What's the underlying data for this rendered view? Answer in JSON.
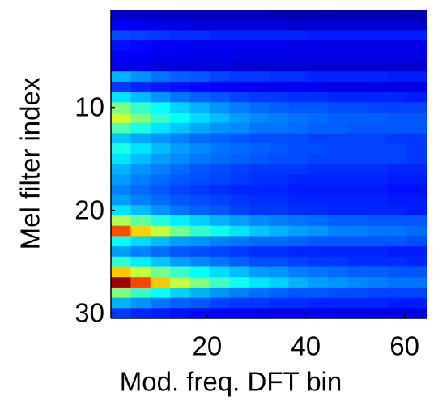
{
  "chart_data": {
    "type": "heatmap",
    "xlabel": "Mod. freq. DFT bin",
    "ylabel": "Mel filter index",
    "xbins": [
      0.5,
      4.5,
      8.5,
      12.5,
      16.5,
      20.5,
      24.5,
      28.5,
      32.5,
      36.5,
      40.5,
      44.5,
      48.5,
      52.5,
      56.5,
      60.5,
      64.5
    ],
    "y": [
      1,
      2,
      3,
      4,
      5,
      6,
      7,
      8,
      9,
      10,
      11,
      12,
      13,
      14,
      15,
      16,
      17,
      18,
      19,
      20,
      21,
      22,
      23,
      24,
      25,
      26,
      27,
      28,
      29,
      30
    ],
    "xlim": [
      0.5,
      64.5
    ],
    "xticks": [
      20,
      40,
      60
    ],
    "ylim": [
      0.5,
      30.5
    ],
    "yticks": [
      10,
      20,
      30
    ],
    "y_inverted": true,
    "colormap": "jet",
    "zlim": [
      0,
      1
    ],
    "z": [
      [
        0.08,
        0.07,
        0.07,
        0.06,
        0.06,
        0.06,
        0.06,
        0.06,
        0.05,
        0.05,
        0.05,
        0.05,
        0.05,
        0.05,
        0.05,
        0.05
      ],
      [
        0.12,
        0.11,
        0.1,
        0.1,
        0.09,
        0.09,
        0.09,
        0.09,
        0.09,
        0.08,
        0.08,
        0.08,
        0.08,
        0.08,
        0.08,
        0.08
      ],
      [
        0.2,
        0.19,
        0.18,
        0.17,
        0.17,
        0.16,
        0.16,
        0.16,
        0.16,
        0.16,
        0.15,
        0.15,
        0.15,
        0.15,
        0.15,
        0.15
      ],
      [
        0.14,
        0.13,
        0.12,
        0.12,
        0.11,
        0.11,
        0.11,
        0.11,
        0.11,
        0.1,
        0.1,
        0.1,
        0.1,
        0.1,
        0.1,
        0.1
      ],
      [
        0.12,
        0.12,
        0.11,
        0.11,
        0.11,
        0.11,
        0.1,
        0.1,
        0.1,
        0.1,
        0.1,
        0.1,
        0.1,
        0.1,
        0.1,
        0.1
      ],
      [
        0.1,
        0.1,
        0.09,
        0.09,
        0.09,
        0.09,
        0.08,
        0.08,
        0.08,
        0.08,
        0.08,
        0.08,
        0.08,
        0.08,
        0.08,
        0.08
      ],
      [
        0.3,
        0.27,
        0.24,
        0.22,
        0.21,
        0.19,
        0.18,
        0.18,
        0.17,
        0.17,
        0.16,
        0.16,
        0.16,
        0.16,
        0.15,
        0.15
      ],
      [
        0.18,
        0.16,
        0.15,
        0.14,
        0.13,
        0.12,
        0.12,
        0.11,
        0.11,
        0.11,
        0.11,
        0.1,
        0.1,
        0.1,
        0.1,
        0.1
      ],
      [
        0.35,
        0.31,
        0.27,
        0.24,
        0.22,
        0.21,
        0.19,
        0.18,
        0.18,
        0.17,
        0.17,
        0.16,
        0.16,
        0.16,
        0.16,
        0.15
      ],
      [
        0.5,
        0.43,
        0.38,
        0.33,
        0.3,
        0.27,
        0.25,
        0.23,
        0.22,
        0.21,
        0.21,
        0.2,
        0.2,
        0.19,
        0.19,
        0.19
      ],
      [
        0.58,
        0.5,
        0.43,
        0.38,
        0.34,
        0.31,
        0.28,
        0.26,
        0.25,
        0.24,
        0.23,
        0.22,
        0.22,
        0.22,
        0.21,
        0.21
      ],
      [
        0.45,
        0.4,
        0.35,
        0.32,
        0.29,
        0.27,
        0.26,
        0.24,
        0.24,
        0.23,
        0.22,
        0.22,
        0.21,
        0.21,
        0.21,
        0.21
      ],
      [
        0.32,
        0.29,
        0.27,
        0.25,
        0.23,
        0.22,
        0.21,
        0.2,
        0.2,
        0.2,
        0.19,
        0.19,
        0.19,
        0.19,
        0.18,
        0.18
      ],
      [
        0.4,
        0.35,
        0.31,
        0.28,
        0.26,
        0.24,
        0.23,
        0.22,
        0.21,
        0.2,
        0.2,
        0.19,
        0.19,
        0.19,
        0.19,
        0.18
      ],
      [
        0.35,
        0.31,
        0.28,
        0.26,
        0.24,
        0.23,
        0.22,
        0.21,
        0.2,
        0.2,
        0.19,
        0.19,
        0.19,
        0.19,
        0.19,
        0.18
      ],
      [
        0.3,
        0.27,
        0.25,
        0.23,
        0.21,
        0.2,
        0.19,
        0.18,
        0.18,
        0.18,
        0.17,
        0.17,
        0.17,
        0.17,
        0.16,
        0.16
      ],
      [
        0.28,
        0.25,
        0.23,
        0.21,
        0.2,
        0.19,
        0.18,
        0.17,
        0.17,
        0.16,
        0.16,
        0.16,
        0.16,
        0.16,
        0.15,
        0.15
      ],
      [
        0.25,
        0.23,
        0.21,
        0.19,
        0.18,
        0.17,
        0.16,
        0.16,
        0.16,
        0.15,
        0.15,
        0.15,
        0.15,
        0.15,
        0.14,
        0.14
      ],
      [
        0.28,
        0.25,
        0.23,
        0.21,
        0.2,
        0.19,
        0.18,
        0.17,
        0.17,
        0.16,
        0.16,
        0.16,
        0.16,
        0.16,
        0.15,
        0.15
      ],
      [
        0.35,
        0.31,
        0.27,
        0.24,
        0.22,
        0.21,
        0.19,
        0.18,
        0.18,
        0.17,
        0.17,
        0.16,
        0.16,
        0.16,
        0.16,
        0.15
      ],
      [
        0.55,
        0.47,
        0.41,
        0.36,
        0.33,
        0.3,
        0.28,
        0.26,
        0.25,
        0.24,
        0.23,
        0.22,
        0.22,
        0.21,
        0.21,
        0.21
      ],
      [
        0.8,
        0.67,
        0.57,
        0.49,
        0.43,
        0.39,
        0.35,
        0.32,
        0.3,
        0.28,
        0.27,
        0.25,
        0.25,
        0.24,
        0.24,
        0.23
      ],
      [
        0.38,
        0.34,
        0.31,
        0.28,
        0.27,
        0.25,
        0.24,
        0.23,
        0.23,
        0.22,
        0.21,
        0.21,
        0.21,
        0.21,
        0.21,
        0.2
      ],
      [
        0.28,
        0.25,
        0.23,
        0.21,
        0.2,
        0.19,
        0.18,
        0.17,
        0.17,
        0.16,
        0.16,
        0.16,
        0.16,
        0.16,
        0.15,
        0.15
      ],
      [
        0.42,
        0.36,
        0.32,
        0.28,
        0.26,
        0.24,
        0.22,
        0.2,
        0.2,
        0.19,
        0.18,
        0.18,
        0.17,
        0.17,
        0.17,
        0.16
      ],
      [
        0.68,
        0.57,
        0.49,
        0.43,
        0.38,
        0.34,
        0.31,
        0.28,
        0.27,
        0.25,
        0.24,
        0.23,
        0.22,
        0.22,
        0.21,
        0.21
      ],
      [
        0.97,
        0.81,
        0.68,
        0.57,
        0.5,
        0.44,
        0.39,
        0.35,
        0.33,
        0.3,
        0.28,
        0.27,
        0.26,
        0.25,
        0.24,
        0.24
      ],
      [
        0.5,
        0.43,
        0.38,
        0.33,
        0.3,
        0.27,
        0.25,
        0.23,
        0.22,
        0.21,
        0.21,
        0.2,
        0.2,
        0.19,
        0.19,
        0.19
      ],
      [
        0.3,
        0.27,
        0.24,
        0.22,
        0.21,
        0.19,
        0.18,
        0.18,
        0.17,
        0.17,
        0.16,
        0.16,
        0.16,
        0.16,
        0.15,
        0.15
      ],
      [
        0.18,
        0.16,
        0.15,
        0.14,
        0.13,
        0.12,
        0.12,
        0.11,
        0.11,
        0.11,
        0.11,
        0.1,
        0.1,
        0.1,
        0.1,
        0.1
      ]
    ]
  }
}
